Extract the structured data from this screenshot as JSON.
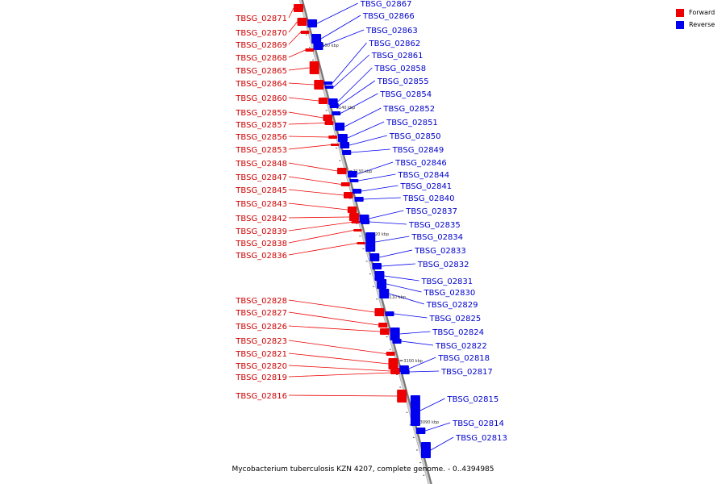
{
  "caption": "Mycobacterium tuberculosis KZN 4207, complete genome. - 0..4394985",
  "legend": [
    {
      "label": "Forward",
      "color": "#ee0000"
    },
    {
      "label": "Reverse",
      "color": "#0000ee"
    }
  ],
  "colors": {
    "forward": "#ee0000",
    "reverse": "#0000ee",
    "backbone": "#999999"
  },
  "ticks": [
    "3150 kbp",
    "3140 kbp",
    "3130 kbp",
    "3120 kbp",
    "3110 kbp",
    "3100 kbp",
    "3090 kbp"
  ],
  "forward_genes": [
    "TBSG_02871",
    "TBSG_02870",
    "TBSG_02869",
    "TBSG_02868",
    "TBSG_02865",
    "TBSG_02864",
    "TBSG_02860",
    "TBSG_02859",
    "TBSG_02857",
    "TBSG_02856",
    "TBSG_02853",
    "TBSG_02848",
    "TBSG_02847",
    "TBSG_02845",
    "TBSG_02843",
    "TBSG_02842",
    "TBSG_02839",
    "TBSG_02838",
    "TBSG_02836",
    "TBSG_02828",
    "TBSG_02827",
    "TBSG_02826",
    "TBSG_02823",
    "TBSG_02821",
    "TBSG_02820",
    "TBSG_02819",
    "TBSG_02816"
  ],
  "reverse_genes": [
    "TBSG_02867",
    "TBSG_02866",
    "TBSG_02863",
    "TBSG_02862",
    "TBSG_02861",
    "TBSG_02858",
    "TBSG_02855",
    "TBSG_02854",
    "TBSG_02852",
    "TBSG_02851",
    "TBSG_02850",
    "TBSG_02849",
    "TBSG_02846",
    "TBSG_02844",
    "TBSG_02841",
    "TBSG_02840",
    "TBSG_02837",
    "TBSG_02835",
    "TBSG_02834",
    "TBSG_02833",
    "TBSG_02832",
    "TBSG_02831",
    "TBSG_02830",
    "TBSG_02829",
    "TBSG_02825",
    "TBSG_02824",
    "TBSG_02822",
    "TBSG_02818",
    "TBSG_02817",
    "TBSG_02815",
    "TBSG_02814",
    "TBSG_02813"
  ]
}
